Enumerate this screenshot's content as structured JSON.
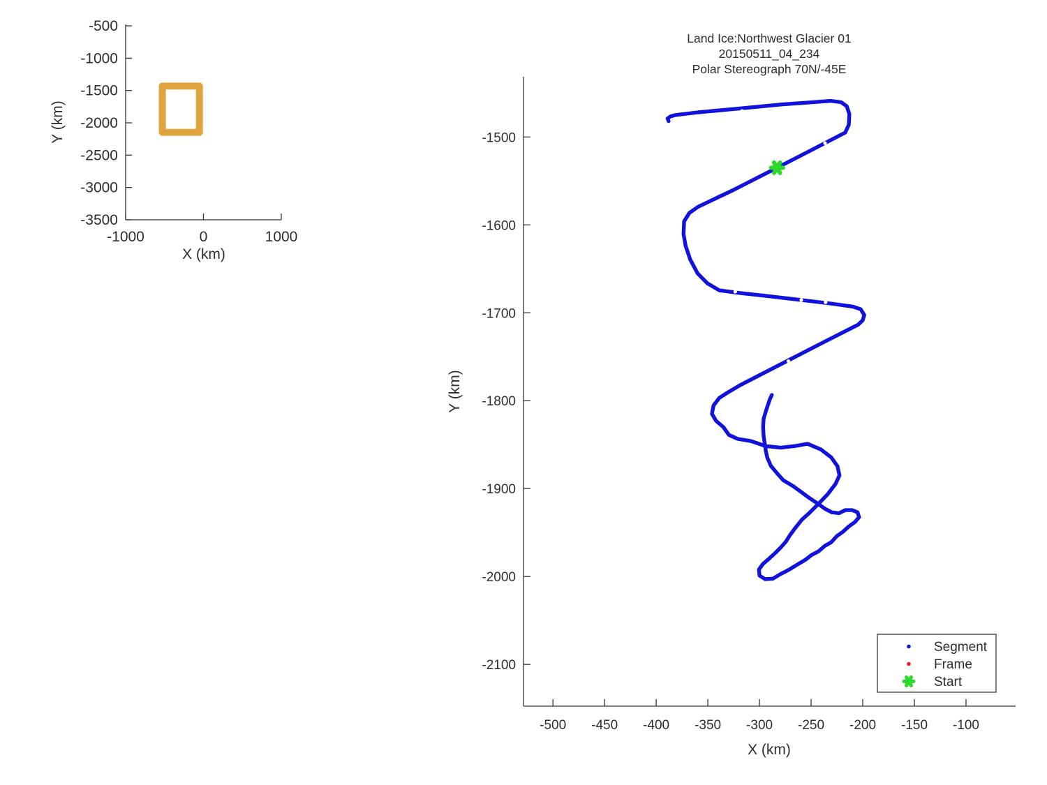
{
  "colors": {
    "track_blue": "#1212dd",
    "frame_red": "#e32222",
    "start_green": "#2bd92b",
    "coverage_orange": "#e0a43c",
    "axis_gray": "#333333"
  },
  "chart_data": [
    {
      "id": "overview",
      "type": "line",
      "title": "",
      "xlabel": "X (km)",
      "ylabel": "Y (km)",
      "xlim": [
        -1000,
        1000
      ],
      "ylim": [
        -3500,
        -478
      ],
      "grid": false,
      "xticks": [
        -1000,
        0,
        1000
      ],
      "xtick_labels": [
        "-1000",
        "0",
        "1000"
      ],
      "yticks": [
        -500,
        -1000,
        -1500,
        -2000,
        -2500,
        -3000,
        -3500
      ],
      "ytick_labels": [
        "-500",
        "-1000",
        "-1500",
        "-2000",
        "-2500",
        "-3000",
        "-3500"
      ],
      "series": [
        {
          "name": "coverage-extent-box",
          "shape": "rect-outline",
          "color": "#e0a43c",
          "x_km": [
            -528.5,
            -52
          ],
          "y_km": [
            -2147.5,
            -1431.5
          ],
          "stroke_px": 10
        }
      ]
    },
    {
      "id": "main",
      "type": "line",
      "title_lines": [
        "Land Ice:Northwest Glacier 01",
        "20150511_04_234",
        "Polar Stereograph 70N/-45E"
      ],
      "xlabel": "X (km)",
      "ylabel": "Y (km)",
      "xlim": [
        -528.5,
        -52
      ],
      "ylim": [
        -2147.5,
        -1431.5
      ],
      "grid": false,
      "xticks": [
        -500,
        -450,
        -400,
        -350,
        -300,
        -250,
        -200,
        -150,
        -100
      ],
      "xtick_labels": [
        "-500",
        "-450",
        "-400",
        "-350",
        "-300",
        "-250",
        "-200",
        "-150",
        "-100"
      ],
      "yticks": [
        -1500,
        -1600,
        -1700,
        -1800,
        -1900,
        -2000,
        -2100
      ],
      "ytick_labels": [
        "-1500",
        "-1600",
        "-1700",
        "-1800",
        "-1900",
        "-2000",
        "-2100"
      ],
      "legend": {
        "position": "lower right",
        "items": [
          {
            "label": "Segment",
            "marker": "dot",
            "color": "#1212dd"
          },
          {
            "label": "Frame",
            "marker": "dot",
            "color": "#e32222"
          },
          {
            "label": "Start",
            "marker": "asterisk",
            "color": "#2bd92b"
          }
        ]
      },
      "start_km": [
        -283,
        -1535
      ],
      "track_km": [
        [
          -388,
          -1482
        ],
        [
          -389,
          -1479
        ],
        [
          -386,
          -1476.5
        ],
        [
          -381,
          -1475
        ],
        [
          -359.5,
          -1472
        ],
        [
          -319,
          -1467.5
        ],
        [
          -278.5,
          -1463
        ],
        [
          -231,
          -1459
        ],
        [
          -221,
          -1460.5
        ],
        [
          -215.5,
          -1465
        ],
        [
          -213,
          -1474
        ],
        [
          -213.5,
          -1486
        ],
        [
          -217,
          -1495
        ],
        [
          -251.5,
          -1516
        ],
        [
          -283,
          -1535
        ],
        [
          -325.5,
          -1560.5
        ],
        [
          -359.5,
          -1579.5
        ],
        [
          -368,
          -1586.5
        ],
        [
          -373,
          -1596
        ],
        [
          -373.5,
          -1610.5
        ],
        [
          -371.5,
          -1624
        ],
        [
          -367,
          -1639.5
        ],
        [
          -360,
          -1655
        ],
        [
          -350.5,
          -1666.5
        ],
        [
          -339,
          -1674.5
        ],
        [
          -319,
          -1677.5
        ],
        [
          -292,
          -1681
        ],
        [
          -259.5,
          -1685.5
        ],
        [
          -231,
          -1689.5
        ],
        [
          -209.5,
          -1693
        ],
        [
          -202,
          -1696
        ],
        [
          -198.5,
          -1702.5
        ],
        [
          -200,
          -1708.5
        ],
        [
          -204.5,
          -1713.5
        ],
        [
          -238,
          -1733.5
        ],
        [
          -278.5,
          -1758
        ],
        [
          -319,
          -1782.5
        ],
        [
          -330.5,
          -1790.5
        ],
        [
          -339,
          -1797
        ],
        [
          -344.5,
          -1805.5
        ],
        [
          -346,
          -1815
        ],
        [
          -342,
          -1823
        ],
        [
          -335,
          -1830
        ],
        [
          -329.5,
          -1839
        ],
        [
          -321,
          -1843.5
        ],
        [
          -308,
          -1846
        ],
        [
          -294.5,
          -1851.5
        ],
        [
          -279.5,
          -1853.5
        ],
        [
          -265,
          -1851.5
        ],
        [
          -253.5,
          -1849
        ],
        [
          -240.5,
          -1855.5
        ],
        [
          -230.5,
          -1864.5
        ],
        [
          -224.5,
          -1874.5
        ],
        [
          -222.5,
          -1885
        ],
        [
          -226.5,
          -1895
        ],
        [
          -234,
          -1906.5
        ],
        [
          -243,
          -1917.5
        ],
        [
          -252,
          -1928
        ],
        [
          -259,
          -1935.5
        ],
        [
          -265.5,
          -1945
        ],
        [
          -270.5,
          -1953
        ],
        [
          -274.5,
          -1960.5
        ],
        [
          -279,
          -1966.5
        ],
        [
          -284.5,
          -1973
        ],
        [
          -290.5,
          -1979.5
        ],
        [
          -296.5,
          -1985.5
        ],
        [
          -300.5,
          -1992
        ],
        [
          -300,
          -1999
        ],
        [
          -294.5,
          -2003
        ],
        [
          -287,
          -2002.5
        ],
        [
          -280,
          -1997.5
        ],
        [
          -271,
          -1992
        ],
        [
          -262,
          -1985.5
        ],
        [
          -255.5,
          -1981
        ],
        [
          -249.5,
          -1975.5
        ],
        [
          -243,
          -1971.5
        ],
        [
          -236.5,
          -1965
        ],
        [
          -230.5,
          -1961
        ],
        [
          -225,
          -1954
        ],
        [
          -219,
          -1949
        ],
        [
          -213.5,
          -1943
        ],
        [
          -207.5,
          -1938
        ],
        [
          -203.5,
          -1932.5
        ],
        [
          -205,
          -1927
        ],
        [
          -210,
          -1924.5
        ],
        [
          -217,
          -1924.5
        ],
        [
          -223,
          -1928
        ],
        [
          -230,
          -1927
        ],
        [
          -236.5,
          -1923
        ],
        [
          -243,
          -1917.5
        ],
        [
          -252,
          -1910.5
        ],
        [
          -259.5,
          -1904
        ],
        [
          -267,
          -1897.5
        ],
        [
          -277,
          -1890.5
        ],
        [
          -283,
          -1882.5
        ],
        [
          -289,
          -1874
        ],
        [
          -292.5,
          -1864.5
        ],
        [
          -294,
          -1856.5
        ],
        [
          -294.5,
          -1851.5
        ],
        [
          -296,
          -1840.5
        ],
        [
          -296.5,
          -1830
        ],
        [
          -296,
          -1820.5
        ],
        [
          -293,
          -1809
        ],
        [
          -290,
          -1798.5
        ],
        [
          -288,
          -1793.5
        ]
      ],
      "gaps_km": [
        [
          -317,
          -1470.5
        ],
        [
          -236.5,
          -1507
        ],
        [
          -323.5,
          -1676
        ],
        [
          -259.5,
          -1685.5
        ],
        [
          -236,
          -1688
        ],
        [
          -272,
          -1755
        ]
      ]
    }
  ]
}
